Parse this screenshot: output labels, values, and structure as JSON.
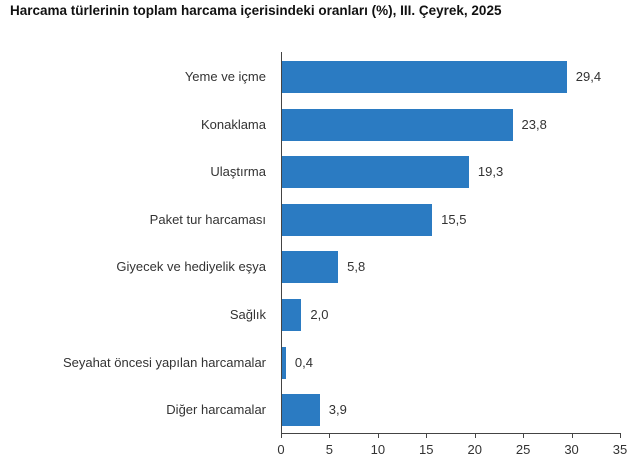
{
  "chart_data": {
    "type": "bar",
    "orientation": "horizontal",
    "title": "Harcama türlerinin toplam harcama içerisindeki oranları (%), III. Çeyrek, 2025",
    "xlabel": "",
    "ylabel": "",
    "categories": [
      "Yeme ve içme",
      "Konaklama",
      "Ulaştırma",
      "Paket tur harcaması",
      "Giyecek ve hediyelik eşya",
      "Sağlık",
      "Seyahat öncesi yapılan harcamalar",
      "Diğer harcamalar"
    ],
    "values": [
      29.4,
      23.8,
      19.3,
      15.5,
      5.8,
      2.0,
      0.4,
      3.9
    ],
    "value_labels": [
      "29,4",
      "23,8",
      "19,3",
      "15,5",
      "5,8",
      "2,0",
      "0,4",
      "3,9"
    ],
    "xlim": [
      0,
      35
    ],
    "xticks": [
      "0",
      "5",
      "10",
      "15",
      "20",
      "25",
      "30",
      "35"
    ],
    "grid": false,
    "legend": null,
    "bar_color": "#2b7bc2"
  }
}
